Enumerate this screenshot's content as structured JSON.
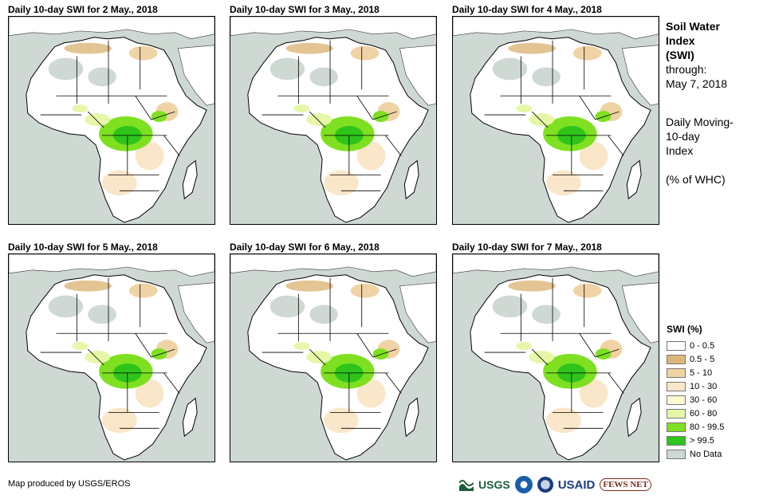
{
  "panels": [
    {
      "title": "Daily 10-day SWI for 2 May., 2018"
    },
    {
      "title": "Daily 10-day SWI for 3 May., 2018"
    },
    {
      "title": "Daily 10-day SWI for 4 May., 2018"
    },
    {
      "title": "Daily 10-day SWI for 5 May., 2018"
    },
    {
      "title": "Daily 10-day SWI for 6 May., 2018"
    },
    {
      "title": "Daily 10-day SWI for 7 May., 2018"
    }
  ],
  "side": {
    "title_line1": "Soil Water",
    "title_line2": "Index",
    "title_line3": "(SWI)",
    "through_label": "through:",
    "through_date": "May 7, 2018",
    "desc_line1": "Daily Moving-",
    "desc_line2": "10-day",
    "desc_line3": "Index",
    "unit": "(% of WHC)"
  },
  "legend": {
    "title": "SWI (%)",
    "items": [
      {
        "label": "0 - 0.5",
        "color": "#ffffff"
      },
      {
        "label": "0.5 - 5",
        "color": "#dcb779"
      },
      {
        "label": "5 - 10",
        "color": "#f0d3a4"
      },
      {
        "label": "10 - 30",
        "color": "#fae6c8"
      },
      {
        "label": "30 - 60",
        "color": "#fdf8d2"
      },
      {
        "label": "60 - 80",
        "color": "#e6f7a8"
      },
      {
        "label": "80 - 99.5",
        "color": "#7ee020"
      },
      {
        "label": "> 99.5",
        "color": "#2ec41a"
      },
      {
        "label": "No Data",
        "color": "#cfd9d4"
      }
    ]
  },
  "credit": "Map produced by USGS/EROS",
  "logos": {
    "usgs": "USGS",
    "usaid": "USAID",
    "fews": "FEWS NET"
  },
  "colors": {
    "ocean": "#cfd9d4",
    "land": "#ffffff",
    "border": "#000000"
  }
}
